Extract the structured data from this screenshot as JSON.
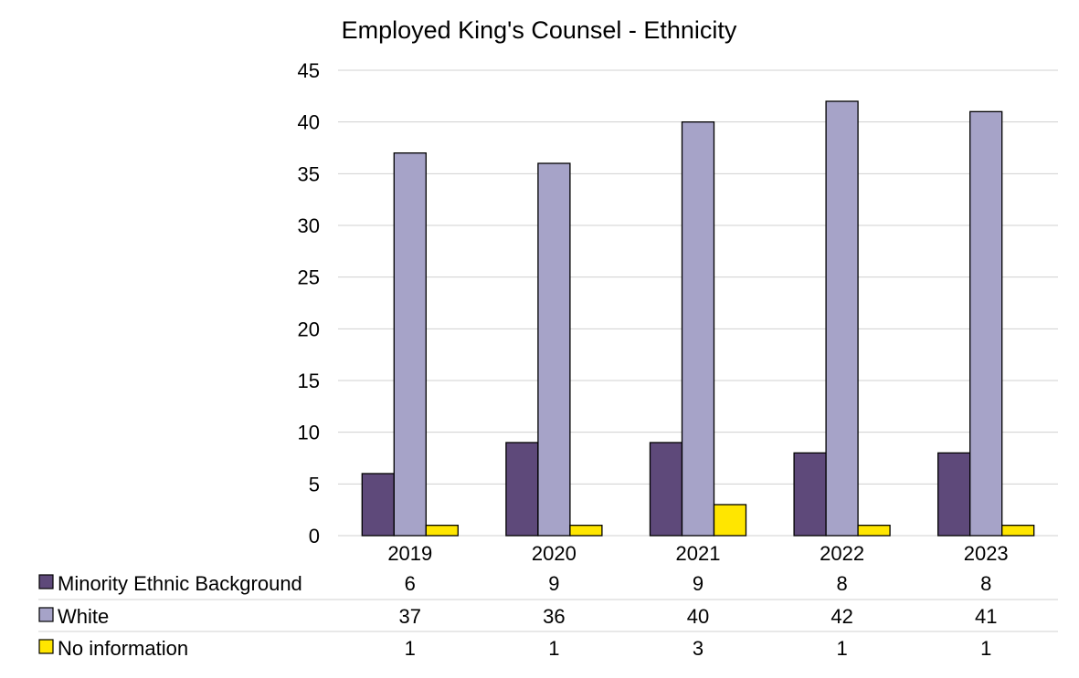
{
  "chart_data": {
    "type": "bar",
    "title": "Employed King's Counsel - Ethnicity",
    "categories": [
      "2019",
      "2020",
      "2021",
      "2022",
      "2023"
    ],
    "series": [
      {
        "name": "Minority Ethnic Background",
        "values": [
          6,
          9,
          9,
          8,
          8
        ],
        "color": "#5e497a"
      },
      {
        "name": "White",
        "values": [
          37,
          36,
          40,
          42,
          41
        ],
        "color": "#a6a3c8"
      },
      {
        "name": "No information",
        "values": [
          1,
          1,
          3,
          1,
          1
        ],
        "color": "#ffe600"
      }
    ],
    "ylim": [
      0,
      45
    ],
    "yticks": [
      0,
      5,
      10,
      15,
      20,
      25,
      30,
      35,
      40,
      45
    ],
    "grid": true,
    "legend": "data-table-below",
    "gridline_color": "#d0d0d0",
    "bar_outline_color": "#000000"
  }
}
